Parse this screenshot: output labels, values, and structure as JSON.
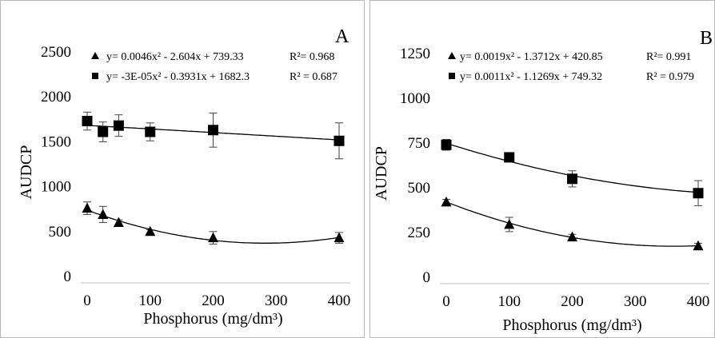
{
  "chart_data": [
    {
      "type": "scatter",
      "panel_label": "A",
      "xlabel": "Phosphorus (mg/dm³)",
      "ylabel": "AUDCP",
      "x_ticks": [
        0,
        100,
        200,
        300,
        400
      ],
      "y_ticks": [
        0,
        500,
        1000,
        1500,
        2000,
        2500
      ],
      "xlim": [
        0,
        400
      ],
      "ylim": [
        0,
        2500
      ],
      "grid": false,
      "legend_position": "top-left",
      "series": [
        {
          "marker": "triangle",
          "equation": "y=  0.0046x² - 2.604x + 739.33",
          "r2": "R²= 0.968",
          "trend": [
            0.0046,
            -2.604,
            739.33
          ],
          "x": [
            0,
            25,
            50,
            100,
            200,
            400
          ],
          "y": [
            760,
            690,
            600,
            500,
            430,
            430
          ],
          "err": [
            70,
            90,
            30,
            20,
            70,
            60
          ]
        },
        {
          "marker": "square",
          "equation": "y= -3E-05x² - 0.3931x + 1682.3",
          "r2": "R² = 0.687",
          "trend": [
            -3e-05,
            -0.3931,
            1682.3
          ],
          "x": [
            0,
            25,
            50,
            100,
            200,
            400
          ],
          "y": [
            1730,
            1610,
            1680,
            1610,
            1630,
            1510
          ],
          "err": [
            100,
            110,
            120,
            100,
            190,
            200
          ]
        }
      ]
    },
    {
      "type": "scatter",
      "panel_label": "B",
      "xlabel": "Phosphorus (mg/dm³)",
      "ylabel": "AUDCP",
      "x_ticks": [
        0,
        100,
        200,
        300,
        400
      ],
      "y_ticks": [
        0,
        250,
        500,
        750,
        1000,
        1250
      ],
      "xlim": [
        0,
        400
      ],
      "ylim": [
        0,
        1250
      ],
      "grid": false,
      "legend_position": "top-left",
      "series": [
        {
          "marker": "triangle",
          "equation": "y= 0.0019x² - 1.3712x + 420.85",
          "r2": "R²= 0.991",
          "trend": [
            0.0019,
            -1.3712,
            420.85
          ],
          "x": [
            0,
            100,
            200,
            400
          ],
          "y": [
            420,
            295,
            225,
            175
          ],
          "err": [
            15,
            40,
            15,
            15
          ]
        },
        {
          "marker": "square",
          "equation": "y= 0.0011x² - 1.1269x + 749.32",
          "r2": "R² = 0.979",
          "trend": [
            0.0011,
            -1.1269,
            749.32
          ],
          "x": [
            0,
            100,
            200,
            400
          ],
          "y": [
            740,
            670,
            550,
            470
          ],
          "err": [
            30,
            15,
            45,
            70
          ]
        }
      ]
    }
  ]
}
